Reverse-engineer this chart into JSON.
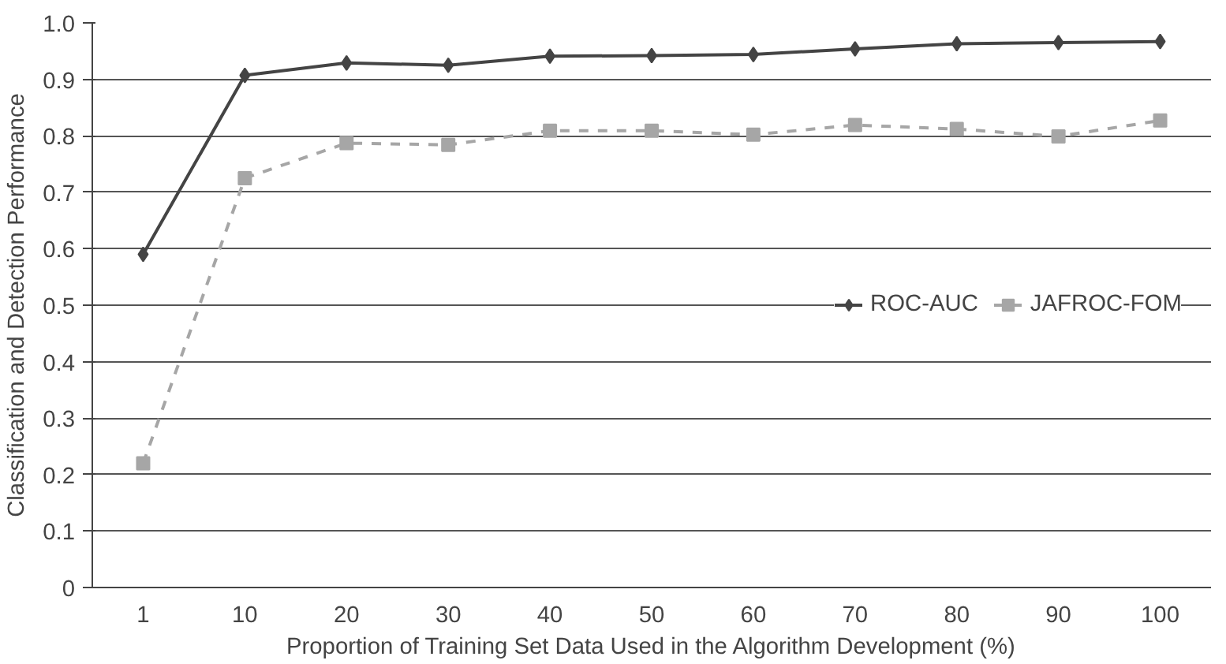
{
  "chart_data": {
    "type": "line",
    "xlabel": "Proportion of Training Set Data Used in the Algorithm Development (%)",
    "ylabel": "Classification and Detection Performance",
    "categories": [
      "1",
      "10",
      "20",
      "30",
      "40",
      "50",
      "60",
      "70",
      "80",
      "90",
      "100"
    ],
    "series": [
      {
        "name": "ROC-AUC",
        "color": "#444444",
        "marker": "diamond",
        "line_style": "solid",
        "values": [
          0.59,
          0.907,
          0.929,
          0.925,
          0.941,
          0.942,
          0.944,
          0.954,
          0.963,
          0.965,
          0.967
        ]
      },
      {
        "name": "JAFROC-FOM",
        "color": "#a6a6a6",
        "marker": "square",
        "line_style": "dashed",
        "values": [
          0.22,
          0.725,
          0.787,
          0.784,
          0.809,
          0.809,
          0.802,
          0.819,
          0.812,
          0.799,
          0.827
        ]
      }
    ],
    "ylim": [
      0,
      1.0
    ],
    "yticks": [
      0,
      {
        "value": 0.1,
        "label": "0.1"
      },
      {
        "value": 0.2,
        "label": "0.2"
      },
      {
        "value": 0.3,
        "label": "0.3"
      },
      {
        "value": 0.4,
        "label": "0.4"
      },
      {
        "value": 0.5,
        "label": "0.5"
      },
      {
        "value": 0.6,
        "label": "0.6"
      },
      {
        "value": 0.7,
        "label": "0.7"
      },
      {
        "value": 0.8,
        "label": "0.8"
      },
      {
        "value": 0.9,
        "label": "0.9"
      },
      {
        "value": 1.0,
        "label": "1.0"
      }
    ],
    "grid": "y",
    "legend": "right"
  }
}
